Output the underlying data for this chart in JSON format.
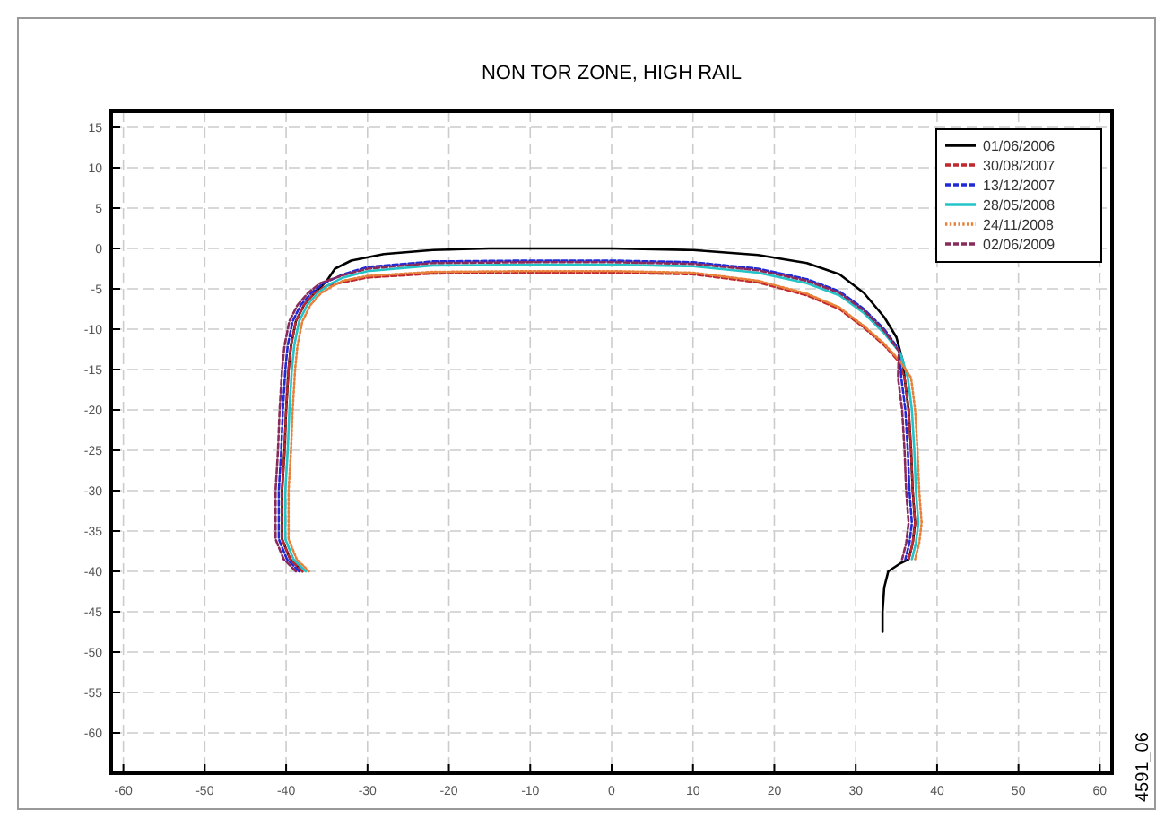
{
  "chart_data": {
    "type": "line",
    "title": "NON TOR ZONE, HIGH RAIL",
    "xlim": [
      -61.5,
      61.5
    ],
    "ylim": [
      -65,
      17
    ],
    "xticks": [
      -60,
      -50,
      -40,
      -30,
      -20,
      -10,
      0,
      10,
      20,
      30,
      40,
      50,
      60
    ],
    "yticks": [
      15,
      10,
      5,
      0,
      -5,
      -10,
      -15,
      -20,
      -25,
      -30,
      -35,
      -40,
      -45,
      -50,
      -55,
      -60
    ],
    "grid": true,
    "legend": "top right",
    "annotations": [
      "4591_06"
    ],
    "series": [
      {
        "name": "01/06/2006",
        "color": "#000000",
        "line_style": "solid",
        "x": [
          -38,
          -39.5,
          -40.5,
          -40.5,
          -40.2,
          -40,
          -39.7,
          -39.4,
          -38.8,
          -37.8,
          -36.5,
          -35,
          -34,
          -32,
          -28,
          -22,
          -15,
          0,
          10,
          18,
          24,
          28,
          31,
          33.5,
          35,
          35.8,
          36,
          36.5,
          36.8,
          37,
          37.3,
          37,
          36.5,
          35.5,
          34,
          33.5,
          33.3,
          33.3
        ],
        "values": [
          -40,
          -38.5,
          -36,
          -30,
          -25,
          -20,
          -15,
          -12,
          -9,
          -7,
          -5.5,
          -4,
          -2.5,
          -1.5,
          -0.7,
          -0.2,
          0,
          0,
          -0.2,
          -0.8,
          -1.8,
          -3.2,
          -5.5,
          -8.5,
          -11,
          -14,
          -16,
          -20,
          -25,
          -30,
          -34,
          -36.5,
          -38.5,
          -39,
          -40,
          -42,
          -45,
          -47.5
        ]
      },
      {
        "name": "30/08/2007",
        "color": "#c0282d",
        "line_style": "dashed",
        "x": [
          -38,
          -39.5,
          -40.5,
          -40.5,
          -40.2,
          -40,
          -39.7,
          -39.4,
          -38.8,
          -37.8,
          -36.5,
          -35,
          -33,
          -30,
          -22,
          -10,
          0,
          10,
          18,
          24,
          28,
          31,
          33.5,
          35.3,
          36,
          36.5,
          36.8,
          37,
          37.3,
          37,
          36.5
        ],
        "values": [
          -40,
          -38.5,
          -36,
          -30,
          -25,
          -20,
          -15,
          -12,
          -9,
          -7,
          -5.5,
          -4.6,
          -4.2,
          -3.6,
          -3.1,
          -3,
          -3,
          -3.2,
          -4.2,
          -5.8,
          -7.5,
          -9.8,
          -12,
          -14,
          -16,
          -20,
          -25,
          -30,
          -34,
          -36.5,
          -38.5
        ]
      },
      {
        "name": "13/12/2007",
        "color": "#1f2bd6",
        "line_style": "dashed",
        "x": [
          -38.4,
          -39.9,
          -40.9,
          -40.9,
          -40.6,
          -40.4,
          -40.1,
          -39.8,
          -39.2,
          -38.2,
          -36.9,
          -35.4,
          -33,
          -30,
          -22,
          -10,
          0,
          10,
          18,
          24,
          28,
          31,
          33.5,
          35.3,
          35.6,
          36.1,
          36.4,
          36.6,
          36.9,
          36.6,
          36.1
        ],
        "values": [
          -40,
          -38.5,
          -36,
          -30,
          -25,
          -20,
          -15,
          -12,
          -9,
          -7,
          -5.5,
          -4.3,
          -3.2,
          -2.3,
          -1.6,
          -1.5,
          -1.5,
          -1.7,
          -2.5,
          -3.8,
          -5.3,
          -7.5,
          -10,
          -12.5,
          -16,
          -20,
          -25,
          -30,
          -34,
          -36.5,
          -38.5
        ]
      },
      {
        "name": "28/05/2008",
        "color": "#22c4c8",
        "line_style": "solid",
        "x": [
          -37.6,
          -39.1,
          -40.1,
          -40.1,
          -39.8,
          -39.6,
          -39.3,
          -39,
          -38.4,
          -37.4,
          -36.1,
          -34.6,
          -33,
          -30,
          -22,
          -10,
          0,
          10,
          18,
          24,
          28,
          31,
          33.5,
          35.5,
          36.4,
          36.9,
          37.2,
          37.4,
          37.7,
          37.4,
          36.9
        ],
        "values": [
          -40,
          -38.5,
          -36,
          -30,
          -25,
          -20,
          -15,
          -12,
          -9,
          -7,
          -5.5,
          -4.4,
          -3.6,
          -2.8,
          -2.1,
          -2,
          -2,
          -2.2,
          -3,
          -4.3,
          -5.8,
          -8,
          -10.5,
          -13,
          -16,
          -20,
          -25,
          -30,
          -34,
          -36.5,
          -38.5
        ]
      },
      {
        "name": "24/11/2008",
        "color": "#e8803a",
        "line_style": "dotted",
        "x": [
          -37.2,
          -38.7,
          -39.7,
          -39.7,
          -39.4,
          -39.2,
          -38.9,
          -38.6,
          -38,
          -37,
          -35.7,
          -34.2,
          -33,
          -30,
          -22,
          -10,
          0,
          10,
          18,
          24,
          28,
          31,
          33.5,
          35.3,
          36.8,
          37.3,
          37.6,
          37.8,
          38.1,
          37.8,
          37.3
        ],
        "values": [
          -40,
          -38.5,
          -36,
          -30,
          -25,
          -20,
          -15,
          -12,
          -9,
          -7,
          -5.5,
          -4.6,
          -4,
          -3.4,
          -2.9,
          -2.8,
          -2.8,
          -3,
          -4,
          -5.6,
          -7.3,
          -9.6,
          -11.8,
          -13.8,
          -16,
          -20,
          -25,
          -30,
          -34,
          -36.5,
          -38.5
        ]
      },
      {
        "name": "02/06/2009",
        "color": "#8a2a5a",
        "line_style": "dashed",
        "x": [
          -38.8,
          -40.3,
          -41.3,
          -41.3,
          -41,
          -40.8,
          -40.5,
          -40.2,
          -39.6,
          -38.6,
          -37.3,
          -35.8,
          -33,
          -30,
          -22,
          -10,
          0,
          10,
          18,
          24,
          28,
          31,
          33.5,
          35.3,
          35.2,
          35.7,
          36,
          36.2,
          36.5,
          36.2,
          35.7
        ],
        "values": [
          -40,
          -38.5,
          -36,
          -30,
          -25,
          -20,
          -15,
          -12,
          -9,
          -7,
          -5.5,
          -4.3,
          -3.3,
          -2.5,
          -1.8,
          -1.7,
          -1.7,
          -1.9,
          -2.7,
          -4,
          -5.5,
          -7.7,
          -10.2,
          -12.7,
          -16,
          -20,
          -25,
          -30,
          -34,
          -36.5,
          -38.5
        ]
      }
    ]
  }
}
